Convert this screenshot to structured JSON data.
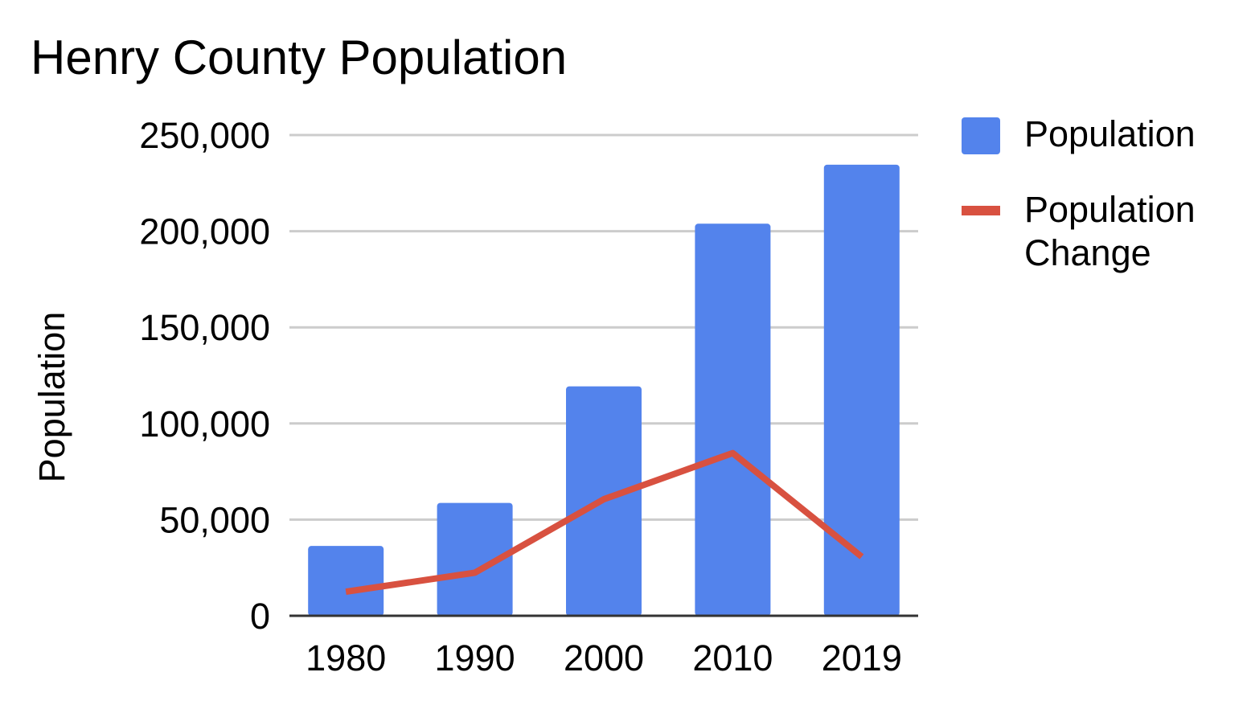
{
  "chart_data": {
    "type": "bar",
    "title": "Henry County Population",
    "xlabel": "",
    "ylabel": "Population",
    "categories": [
      "1980",
      "1990",
      "2000",
      "2010",
      "2019"
    ],
    "ylim": [
      0,
      250000
    ],
    "yticks": [
      0,
      50000,
      100000,
      150000,
      200000,
      250000
    ],
    "ytick_labels": [
      "0",
      "50,000",
      "100,000",
      "150,000",
      "200,000",
      "250,000"
    ],
    "grid": true,
    "legend_position": "right",
    "series": [
      {
        "name": "Population",
        "type": "bar",
        "color": "#5383EC",
        "values": [
          36300,
          58700,
          119300,
          203900,
          234600
        ]
      },
      {
        "name": "Population Change",
        "type": "line",
        "color": "#D85140",
        "values": [
          12500,
          22400,
          60600,
          84600,
          30700
        ]
      }
    ]
  }
}
